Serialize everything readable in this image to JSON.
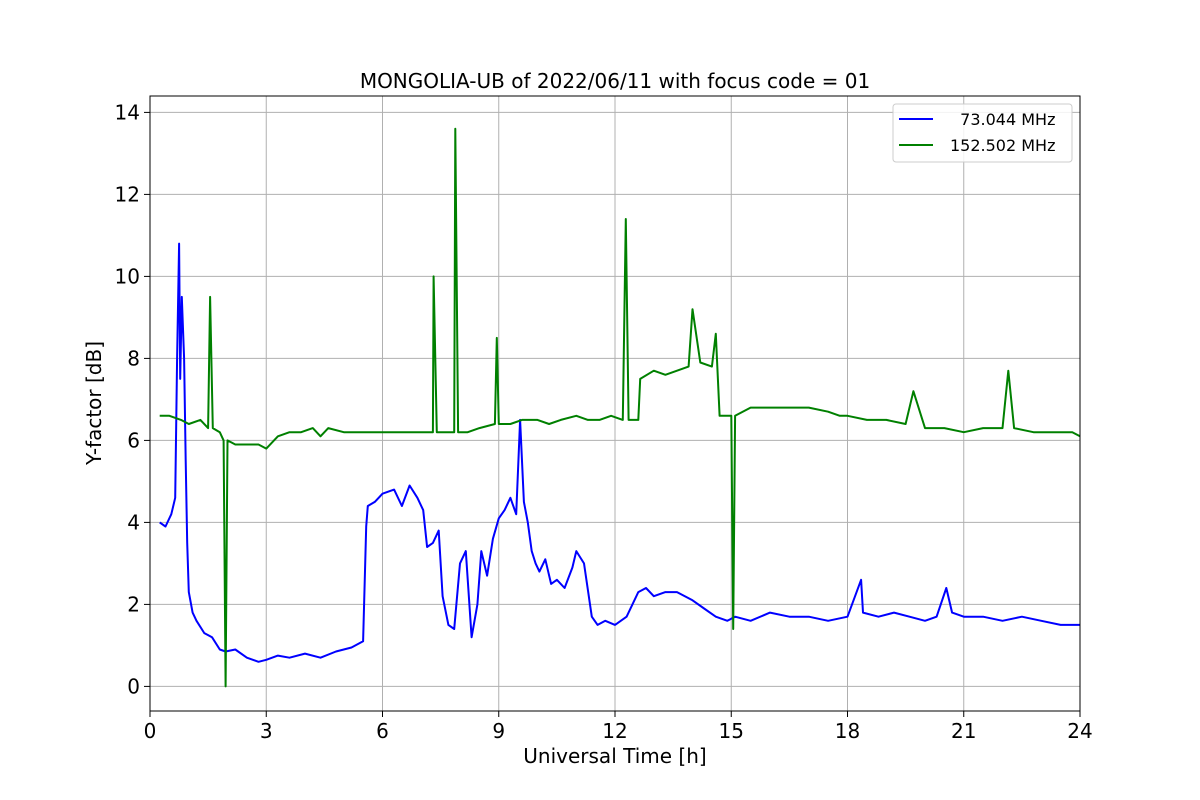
{
  "chart_data": {
    "type": "line",
    "title": "MONGOLIA-UB of 2022/06/11 with focus code = 01",
    "xlabel": "Universal Time [h]",
    "ylabel": "Y-factor [dB]",
    "xlim": [
      0,
      24
    ],
    "ylim": [
      -0.6,
      14.4
    ],
    "xticks": [
      0,
      3,
      6,
      9,
      12,
      15,
      18,
      21,
      24
    ],
    "yticks": [
      0,
      2,
      4,
      6,
      8,
      10,
      12,
      14
    ],
    "grid": true,
    "legend_position": "top-right",
    "series": [
      {
        "name": "  73.044 MHz",
        "color": "#0000ff",
        "x": [
          0.25,
          0.4,
          0.55,
          0.65,
          0.7,
          0.75,
          0.78,
          0.82,
          0.88,
          0.92,
          0.96,
          1.0,
          1.1,
          1.2,
          1.4,
          1.6,
          1.8,
          1.95,
          2.2,
          2.5,
          2.8,
          3.0,
          3.3,
          3.6,
          4.0,
          4.4,
          4.8,
          5.2,
          5.5,
          5.58,
          5.62,
          5.8,
          6.0,
          6.3,
          6.5,
          6.7,
          6.9,
          7.05,
          7.15,
          7.3,
          7.45,
          7.55,
          7.7,
          7.85,
          8.0,
          8.15,
          8.3,
          8.45,
          8.55,
          8.7,
          8.85,
          9.0,
          9.15,
          9.3,
          9.45,
          9.55,
          9.65,
          9.75,
          9.85,
          9.95,
          10.05,
          10.2,
          10.35,
          10.5,
          10.7,
          10.9,
          11.0,
          11.2,
          11.4,
          11.55,
          11.75,
          12.0,
          12.3,
          12.6,
          12.8,
          13.0,
          13.3,
          13.6,
          14.0,
          14.3,
          14.6,
          14.9,
          15.1,
          15.5,
          16.0,
          16.5,
          17.0,
          17.5,
          18.0,
          18.35,
          18.4,
          18.8,
          19.2,
          19.6,
          20.0,
          20.3,
          20.55,
          20.7,
          21.0,
          21.5,
          22.0,
          22.5,
          23.0,
          23.5,
          24.0
        ],
        "y": [
          4.0,
          3.9,
          4.2,
          4.6,
          8.0,
          10.8,
          7.5,
          9.5,
          8.0,
          5.5,
          3.5,
          2.3,
          1.8,
          1.6,
          1.3,
          1.2,
          0.9,
          0.85,
          0.9,
          0.7,
          0.6,
          0.65,
          0.75,
          0.7,
          0.8,
          0.7,
          0.85,
          0.95,
          1.1,
          3.9,
          4.4,
          4.5,
          4.7,
          4.8,
          4.4,
          4.9,
          4.6,
          4.3,
          3.4,
          3.5,
          3.8,
          2.2,
          1.5,
          1.4,
          3.0,
          3.3,
          1.2,
          2.0,
          3.3,
          2.7,
          3.6,
          4.1,
          4.3,
          4.6,
          4.2,
          6.5,
          4.5,
          4.0,
          3.3,
          3.0,
          2.8,
          3.1,
          2.5,
          2.6,
          2.4,
          2.9,
          3.3,
          3.0,
          1.7,
          1.5,
          1.6,
          1.5,
          1.7,
          2.3,
          2.4,
          2.2,
          2.3,
          2.3,
          2.1,
          1.9,
          1.7,
          1.6,
          1.7,
          1.6,
          1.8,
          1.7,
          1.7,
          1.6,
          1.7,
          2.6,
          1.8,
          1.7,
          1.8,
          1.7,
          1.6,
          1.7,
          2.4,
          1.8,
          1.7,
          1.7,
          1.6,
          1.7,
          1.6,
          1.5,
          1.5
        ]
      },
      {
        "name": "152.502 MHz",
        "color": "#008000",
        "x": [
          0.25,
          0.5,
          0.8,
          1.0,
          1.3,
          1.5,
          1.55,
          1.62,
          1.8,
          1.9,
          1.95,
          2.0,
          2.2,
          2.5,
          2.8,
          3.0,
          3.3,
          3.6,
          3.9,
          4.2,
          4.4,
          4.6,
          5.0,
          5.3,
          5.6,
          5.8,
          6.0,
          6.5,
          7.0,
          7.3,
          7.32,
          7.4,
          7.6,
          7.85,
          7.88,
          7.95,
          8.2,
          8.5,
          8.9,
          8.95,
          9.0,
          9.3,
          9.6,
          9.7,
          10.0,
          10.3,
          10.6,
          11.0,
          11.3,
          11.6,
          11.9,
          12.2,
          12.28,
          12.35,
          12.6,
          12.65,
          13.0,
          13.3,
          13.6,
          13.9,
          14.0,
          14.2,
          14.5,
          14.6,
          14.7,
          15.0,
          15.05,
          15.1,
          15.5,
          16.0,
          16.5,
          17.0,
          17.5,
          17.8,
          18.0,
          18.5,
          19.0,
          19.5,
          19.7,
          20.0,
          20.5,
          21.0,
          21.5,
          22.0,
          22.15,
          22.3,
          22.8,
          23.3,
          23.8,
          24.0
        ],
        "y": [
          6.6,
          6.6,
          6.5,
          6.4,
          6.5,
          6.3,
          9.5,
          6.3,
          6.2,
          6.0,
          0.0,
          6.0,
          5.9,
          5.9,
          5.9,
          5.8,
          6.1,
          6.2,
          6.2,
          6.3,
          6.1,
          6.3,
          6.2,
          6.2,
          6.2,
          6.2,
          6.2,
          6.2,
          6.2,
          6.2,
          10.0,
          6.2,
          6.2,
          6.2,
          13.6,
          6.2,
          6.2,
          6.3,
          6.4,
          8.5,
          6.4,
          6.4,
          6.5,
          6.5,
          6.5,
          6.4,
          6.5,
          6.6,
          6.5,
          6.5,
          6.6,
          6.5,
          11.4,
          6.5,
          6.5,
          7.5,
          7.7,
          7.6,
          7.7,
          7.8,
          9.2,
          7.9,
          7.8,
          8.6,
          6.6,
          6.6,
          1.4,
          6.6,
          6.8,
          6.8,
          6.8,
          6.8,
          6.7,
          6.6,
          6.6,
          6.5,
          6.5,
          6.4,
          7.2,
          6.3,
          6.3,
          6.2,
          6.3,
          6.3,
          7.7,
          6.3,
          6.2,
          6.2,
          6.2,
          6.1
        ]
      }
    ]
  }
}
